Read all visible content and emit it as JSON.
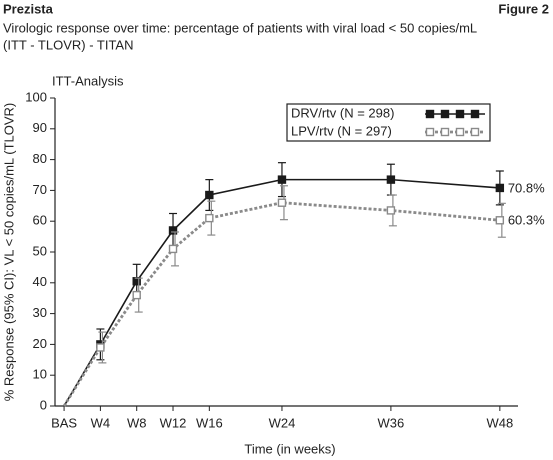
{
  "chart_data": {
    "type": "line",
    "header": "Prezista",
    "figure_label": "Figure 2",
    "title": [
      "Virologic response over time: percentage of patients with viral load < 50 copies/mL",
      "(ITT - TLOVR) - TITAN"
    ],
    "panel_label": "ITT-Analysis",
    "xlabel": "Time (in weeks)",
    "ylabel": "% Response (95% CI): VL < 50 copies/mL (TLOVR)",
    "x": [
      0,
      4,
      8,
      12,
      16,
      24,
      36,
      48
    ],
    "xlim": [
      -1,
      50
    ],
    "xticks": [
      {
        "value": 0,
        "label": "BAS"
      },
      {
        "value": 4,
        "label": "W4"
      },
      {
        "value": 8,
        "label": "W8"
      },
      {
        "value": 12,
        "label": "W12"
      },
      {
        "value": 16,
        "label": "W16"
      },
      {
        "value": 24,
        "label": "W24"
      },
      {
        "value": 36,
        "label": "W36"
      },
      {
        "value": 48,
        "label": "W48"
      }
    ],
    "ylim": [
      0,
      100
    ],
    "yticks": [
      0,
      10,
      20,
      30,
      40,
      50,
      60,
      70,
      80,
      90,
      100
    ],
    "legend": "upper right",
    "series": [
      {
        "name": "DRV/rtv (N = 298)",
        "color": "#1a1a1a",
        "style": "solid",
        "marker": "filled-square",
        "values": [
          0,
          20,
          40.5,
          57,
          68.5,
          73.5,
          73.5,
          70.8
        ],
        "errors": [
          null,
          5,
          5.5,
          5.5,
          5,
          5.5,
          5,
          5.5
        ],
        "value_labels": [
          null,
          null,
          null,
          null,
          null,
          null,
          null,
          "70.8%"
        ]
      },
      {
        "name": "LPV/rtv (N = 297)",
        "color": "#8a8a8a",
        "style": "dotted",
        "marker": "open-square",
        "values": [
          0,
          19,
          36,
          51,
          61,
          66,
          63.5,
          60.3
        ],
        "errors": [
          null,
          5,
          5.5,
          5.5,
          5.5,
          5.5,
          5,
          5.5
        ],
        "value_labels": [
          null,
          null,
          null,
          null,
          null,
          null,
          null,
          "60.3%"
        ]
      }
    ]
  }
}
